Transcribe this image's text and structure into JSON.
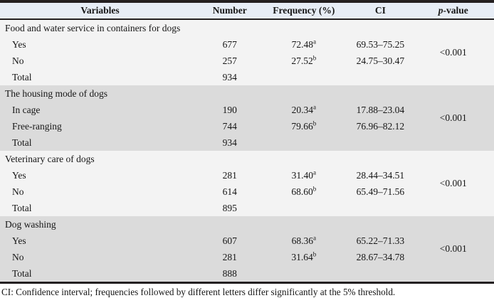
{
  "table": {
    "columns": [
      {
        "label": "Variables"
      },
      {
        "label": "Number"
      },
      {
        "label": "Frequency (%)"
      },
      {
        "label": "CI"
      },
      {
        "label_italic": "p",
        "label_rest": "-value"
      }
    ],
    "sections": [
      {
        "title": "Food and water service in containers for dogs",
        "p_value": "<0.001",
        "rows": [
          {
            "label": "Yes",
            "number": "677",
            "frequency": "72.48",
            "sup": "a",
            "ci": "69.53–75.25"
          },
          {
            "label": "No",
            "number": "257",
            "frequency": "27.52",
            "sup": "b",
            "ci": "24.75–30.47"
          },
          {
            "label": "Total",
            "number": "934"
          }
        ]
      },
      {
        "title": "The housing mode of dogs",
        "p_value": "<0.001",
        "rows": [
          {
            "label": "In cage",
            "number": "190",
            "frequency": "20.34",
            "sup": "a",
            "ci": "17.88–23.04"
          },
          {
            "label": "Free-ranging",
            "number": "744",
            "frequency": "79.66",
            "sup": "b",
            "ci": "76.96–82.12"
          },
          {
            "label": "Total",
            "number": "934"
          }
        ]
      },
      {
        "title": "Veterinary care of dogs",
        "p_value": "<0.001",
        "rows": [
          {
            "label": "Yes",
            "number": "281",
            "frequency": "31.40",
            "sup": "a",
            "ci": "28.44–34.51"
          },
          {
            "label": "No",
            "number": "614",
            "frequency": "68.60",
            "sup": "b",
            "ci": "65.49–71.56"
          },
          {
            "label": "Total",
            "number": "895"
          }
        ]
      },
      {
        "title": "Dog washing",
        "p_value": "<0.001",
        "rows": [
          {
            "label": "Yes",
            "number": "607",
            "frequency": "68.36",
            "sup": "a",
            "ci": "65.22–71.33"
          },
          {
            "label": "No",
            "number": "281",
            "frequency": "31.64",
            "sup": "b",
            "ci": "28.67–34.78"
          },
          {
            "label": "Total",
            "number": "888"
          }
        ]
      }
    ]
  },
  "footnote": "CI: Confidence interval; frequencies followed by different letters differ significantly at the 5% threshold.",
  "colors": {
    "header_bg": "#e7edf6",
    "section_light_bg": "#f3f3f3",
    "section_gray_bg": "#dbdbdb",
    "border": "#231f20"
  }
}
